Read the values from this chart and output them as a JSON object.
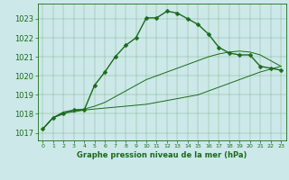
{
  "title": "Graphe pression niveau de la mer (hPa)",
  "bg_color": "#cce8e8",
  "line_color": "#1a6b1a",
  "xlim": [
    -0.5,
    23.5
  ],
  "ylim": [
    1016.6,
    1023.8
  ],
  "yticks": [
    1017,
    1018,
    1019,
    1020,
    1021,
    1022,
    1023
  ],
  "xticks": [
    0,
    1,
    2,
    3,
    4,
    5,
    6,
    7,
    8,
    9,
    10,
    11,
    12,
    13,
    14,
    15,
    16,
    17,
    18,
    19,
    20,
    21,
    22,
    23
  ],
  "series": {
    "main": [
      1017.2,
      1017.8,
      1018.0,
      1018.2,
      1018.2,
      1019.5,
      1020.2,
      1021.0,
      1021.6,
      1022.0,
      1023.05,
      1023.05,
      1023.4,
      1023.3,
      1023.0,
      1022.7,
      1022.2,
      1021.5,
      1021.2,
      1021.1,
      1021.1,
      1020.5,
      1020.4,
      1020.3
    ],
    "low": [
      1017.2,
      1017.8,
      1018.05,
      1018.1,
      1018.2,
      1018.25,
      1018.3,
      1018.35,
      1018.4,
      1018.45,
      1018.5,
      1018.6,
      1018.7,
      1018.8,
      1018.9,
      1019.0,
      1019.2,
      1019.4,
      1019.6,
      1019.8,
      1020.0,
      1020.2,
      1020.35,
      1020.5
    ],
    "high": [
      1017.2,
      1017.8,
      1018.1,
      1018.2,
      1018.25,
      1018.4,
      1018.6,
      1018.9,
      1019.2,
      1019.5,
      1019.8,
      1020.0,
      1020.2,
      1020.4,
      1020.6,
      1020.8,
      1021.0,
      1021.15,
      1021.25,
      1021.3,
      1021.25,
      1021.1,
      1020.8,
      1020.5
    ]
  },
  "marker": "D",
  "marker_size": 2.5,
  "ytick_fontsize": 6,
  "xtick_fontsize": 4.5,
  "xlabel_fontsize": 6
}
